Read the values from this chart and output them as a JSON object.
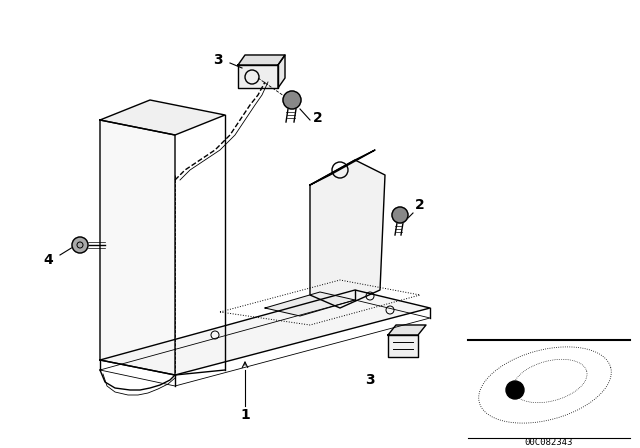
{
  "bg_color": "#ffffff",
  "fig_width": 6.4,
  "fig_height": 4.48,
  "dpi": 100,
  "diagram_code": "00C082343",
  "line_color": "#000000",
  "text_color": "#000000",
  "lw_main": 1.0,
  "lw_thin": 0.6,
  "fs_label": 9
}
